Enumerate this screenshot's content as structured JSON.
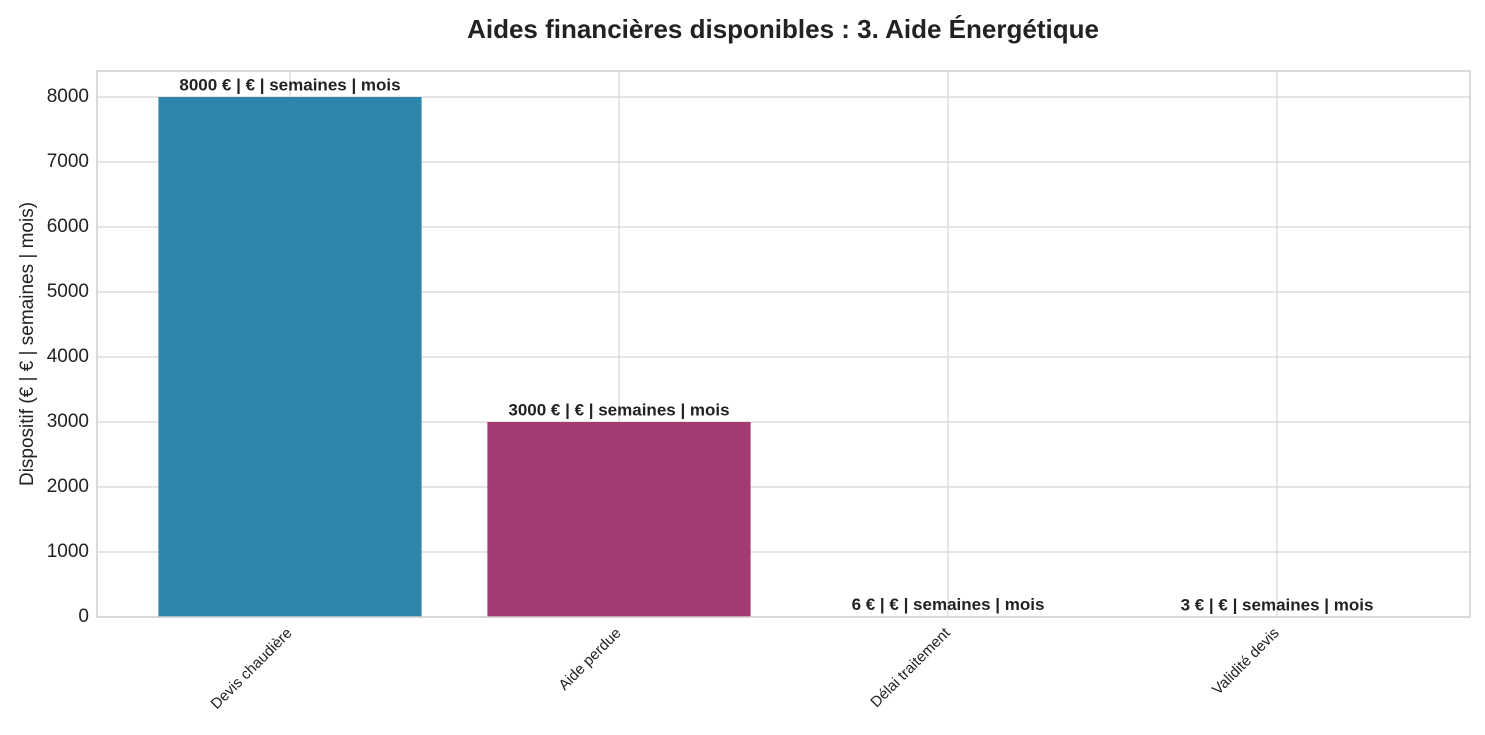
{
  "chart_data": {
    "type": "bar",
    "title": "Aides financières disponibles : 3. Aide Énergétique",
    "y_label": "Dispositif (€ | € | semaines | mois)",
    "categories": [
      "Devis chaudière",
      "Aide perdue",
      "Délai traitement",
      "Validité devis"
    ],
    "values": [
      8000,
      3000,
      6,
      3
    ],
    "value_labels": [
      "8000 € | € | semaines | mois",
      "3000 € | € | semaines | mois",
      "6 € | € | semaines | mois",
      "3 € | € | semaines | mois"
    ],
    "colors": [
      "#2e86ab",
      "#a23b72",
      "#f18f01",
      "#c73e1d"
    ],
    "ylim": [
      0,
      8400
    ],
    "yticks": [
      0,
      1000,
      2000,
      3000,
      4000,
      5000,
      6000,
      7000,
      8000
    ],
    "grid": true
  }
}
